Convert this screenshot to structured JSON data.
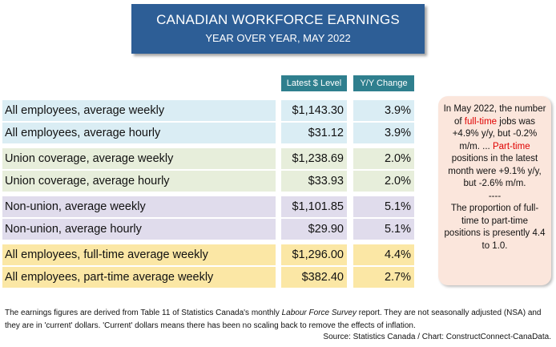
{
  "title": {
    "main": "CANADIAN WORKFORCE EARNINGS",
    "sub": "YEAR OVER YEAR, MAY 2022"
  },
  "headers": {
    "level": "Latest $ Level",
    "yoy": "Y/Y Change"
  },
  "chart_data": {
    "type": "table",
    "title": "CANADIAN WORKFORCE EARNINGS",
    "subtitle": "YEAR OVER YEAR, MAY 2022",
    "columns": [
      "Latest $ Level",
      "Y/Y Change"
    ],
    "rows": [
      {
        "label": "All employees, average weekly",
        "level": "$1,143.30",
        "yoy": "3.9%",
        "group": "blue"
      },
      {
        "label": "All employees, average hourly",
        "level": "$31.12",
        "yoy": "3.9%",
        "group": "blue"
      },
      {
        "label": "Union coverage, average weekly",
        "level": "$1,238.69",
        "yoy": "2.0%",
        "group": "green"
      },
      {
        "label": "Union coverage, average hourly",
        "level": "$33.93",
        "yoy": "2.0%",
        "group": "green"
      },
      {
        "label": "Non-union, average weekly",
        "level": "$1,101.85",
        "yoy": "5.1%",
        "group": "purple"
      },
      {
        "label": "Non-union, average hourly",
        "level": "$29.90",
        "yoy": "5.1%",
        "group": "purple"
      },
      {
        "label": "All employees, full-time average weekly",
        "level": "$1,296.00",
        "yoy": "4.4%",
        "group": "yellow"
      },
      {
        "label": "All employees, part-time average weekly",
        "level": "$382.40",
        "yoy": "2.7%",
        "group": "yellow"
      }
    ]
  },
  "note": {
    "p1_a": "In May 2022, the number of ",
    "p1_red1": "full-time",
    "p1_b": " jobs was +4.9% y/y, but -0.2% m/m. ...",
    "p1_red2": "Part-time",
    "p1_c": " positions in the latest month were +9.1% y/y, but -2.6% m/m.",
    "divider": "----",
    "p2": "The proportion of full-time to part-time positions is presently 4.4 to 1.0."
  },
  "footer": {
    "a": "The earnings figures are derived from Table 11 of Statistics Canada's monthly ",
    "italic": "Labour Force Survey",
    "b": "  report. They are not seasonally adjusted (NSA) and they are in 'current' dollars. 'Current' dollars means there has been no scaling back to remove the effects of inflation.",
    "source": "Source: Statistics Canada / Chart: ConstructConnect-CanaData."
  },
  "colors": {
    "title_bg": "#2d5e96",
    "header_bg": "#2f7f8e",
    "blue": "#daedf4",
    "green": "#e7eedb",
    "purple": "#e0dcec",
    "yellow": "#fbe7a5",
    "note_bg": "#fbe6dc",
    "red_text": "#e00000"
  }
}
